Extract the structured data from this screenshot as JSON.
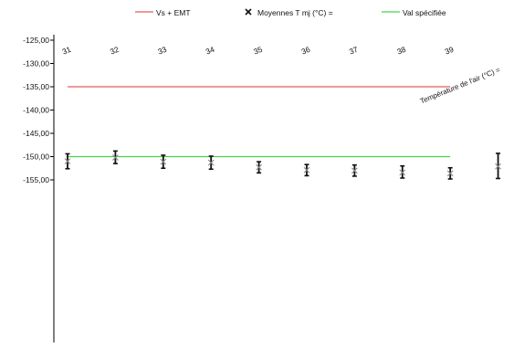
{
  "chart_data": {
    "type": "scatter",
    "title": "",
    "xlabel": "Température de l'air (°C) =",
    "ylabel": "",
    "categories": [
      "31",
      "32",
      "33",
      "34",
      "35",
      "36",
      "37",
      "38",
      "39",
      ""
    ],
    "ylim": [
      -157,
      -125
    ],
    "y_ticks": [
      "-125,00",
      "-130,00",
      "-135,00",
      "-140,00",
      "-145,00",
      "-150,00",
      "-155,00"
    ],
    "y_tick_values": [
      -125,
      -130,
      -135,
      -140,
      -145,
      -150,
      -155
    ],
    "x_axis_position": "top",
    "grid": false,
    "legend_position": "top",
    "legend": [
      {
        "label": "Vs + EMT",
        "type": "line",
        "color": "#e85a5a"
      },
      {
        "label": "Moyennes T mj (°C) =",
        "type": "marker",
        "color": "#111111"
      },
      {
        "label": "Val spécifiée",
        "type": "line",
        "color": "#4ecf4e"
      }
    ],
    "reference_lines": [
      {
        "name": "Vs + EMT",
        "value": -135,
        "from_category": "31",
        "to_category": "39",
        "color": "#e85a5a"
      },
      {
        "name": "Val spécifiée",
        "value": -150,
        "from_category": "31",
        "to_category": "39",
        "color": "#4ecf4e"
      }
    ],
    "series": [
      {
        "name": "Moyennes T mj (°C) =",
        "values": [
          -151.0,
          -150.2,
          -151.1,
          -151.3,
          -152.3,
          -152.9,
          -153.0,
          -153.4,
          -153.6,
          -152.1
        ],
        "error_low": [
          -152.6,
          -151.5,
          -152.5,
          -152.7,
          -153.5,
          -154.1,
          -154.2,
          -154.6,
          -154.8,
          -154.7
        ],
        "error_high": [
          -149.4,
          -148.8,
          -149.7,
          -149.9,
          -151.1,
          -151.7,
          -151.8,
          -152.0,
          -152.4,
          -149.3
        ],
        "color": "#111111"
      }
    ]
  }
}
